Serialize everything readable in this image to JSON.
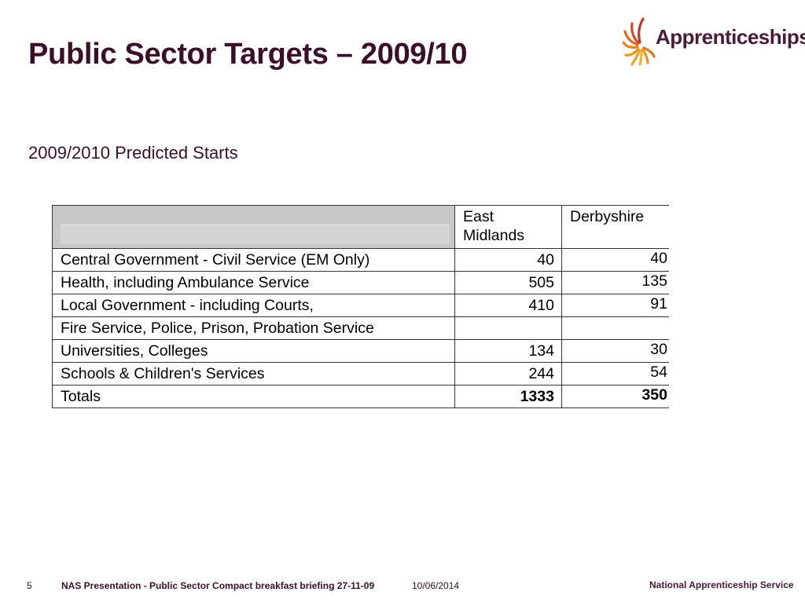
{
  "slide": {
    "title": "Public Sector Targets – 2009/10",
    "subtitle": "2009/2010 Predicted Starts",
    "logo_text": "Apprenticeships"
  },
  "table": {
    "header": {
      "col_em_line1": "East",
      "col_em_line2": "Midlands",
      "col_d": "Derbyshire"
    },
    "rows": [
      {
        "label": "Central Government - Civil Service (EM Only)",
        "east_midlands": "40",
        "derbyshire": "40"
      },
      {
        "label": "Health, including Ambulance Service",
        "east_midlands": "505",
        "derbyshire": "135"
      },
      {
        "label": "Local Government - including Courts,",
        "east_midlands": "410",
        "derbyshire": "91"
      },
      {
        "label": "Fire Service, Police, Prison, Probation Service",
        "east_midlands": "",
        "derbyshire": ""
      },
      {
        "label": "Universities, Colleges",
        "east_midlands": "134",
        "derbyshire": "30"
      },
      {
        "label": "Schools & Children's Services",
        "east_midlands": "244",
        "derbyshire": "54"
      },
      {
        "label": "Totals",
        "east_midlands": "1333",
        "derbyshire": "350"
      }
    ]
  },
  "footer": {
    "page_number": "5",
    "presentation": "NAS Presentation - Public Sector Compact breakfast briefing 27-11-09",
    "date": "10/06/2014",
    "organisation": "National Apprenticeship Service"
  },
  "colors": {
    "title": "#3b0f2a",
    "logo_spokes_warm": "#e8941a",
    "logo_spokes_red": "#c0392b"
  }
}
